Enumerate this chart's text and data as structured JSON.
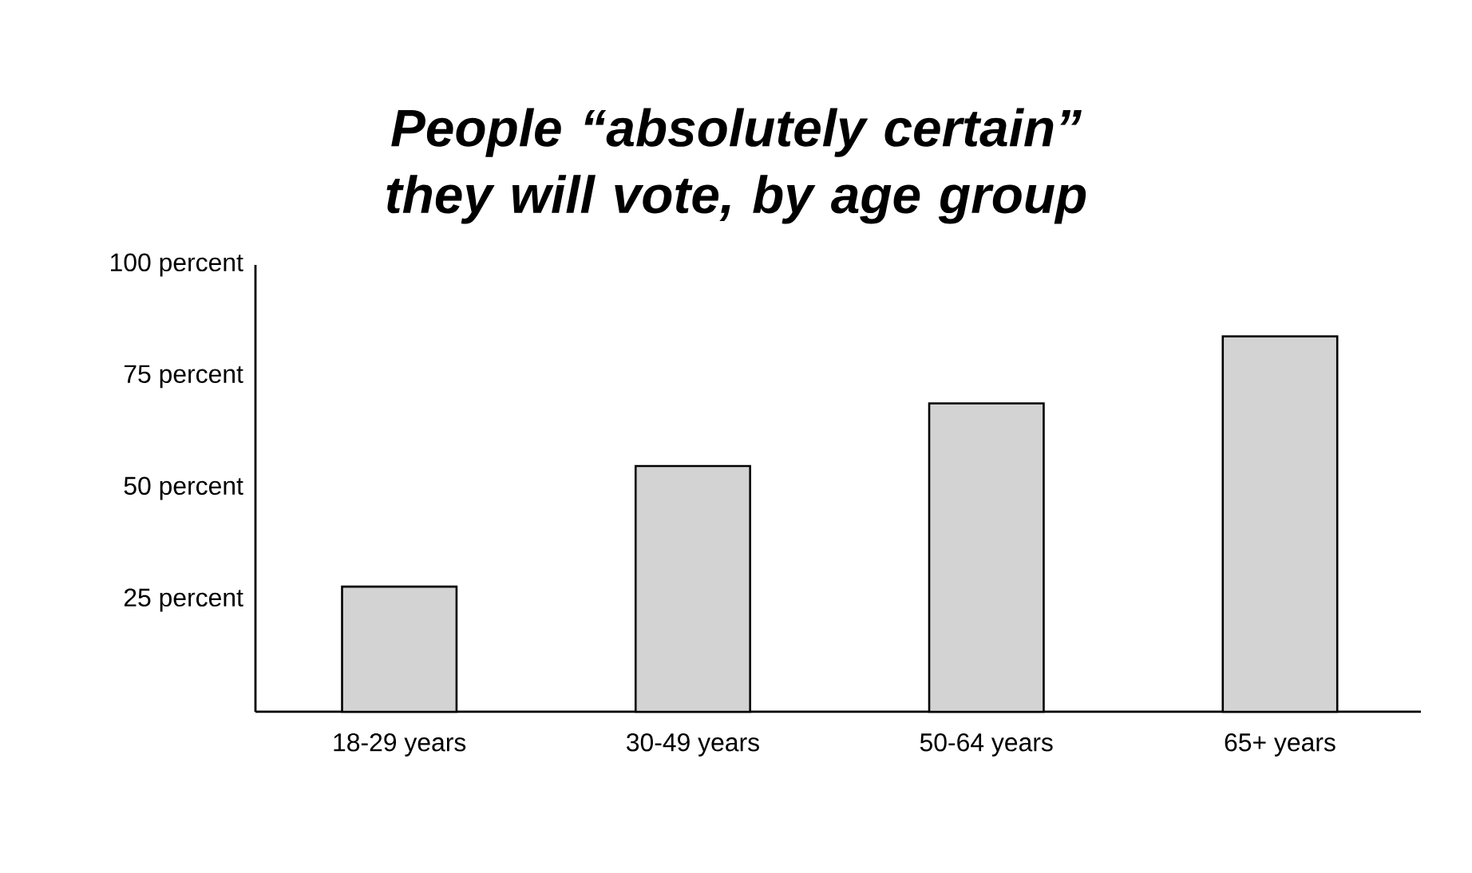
{
  "chart_data": {
    "type": "bar",
    "title": "People “absolutely certain” they will vote, by age group",
    "categories": [
      "18-29 years",
      "30-49 years",
      "50-64 years",
      "65+ years"
    ],
    "values": [
      28,
      55,
      69,
      84
    ],
    "color": "#d3d3d3",
    "ylim": [
      0,
      100
    ],
    "yticks": [
      {
        "value": 25,
        "label": "25 percent"
      },
      {
        "value": 50,
        "label": "50 percent"
      },
      {
        "value": 75,
        "label": "75 percent"
      },
      {
        "value": 100,
        "label": "100 percent"
      }
    ],
    "grid": false
  }
}
